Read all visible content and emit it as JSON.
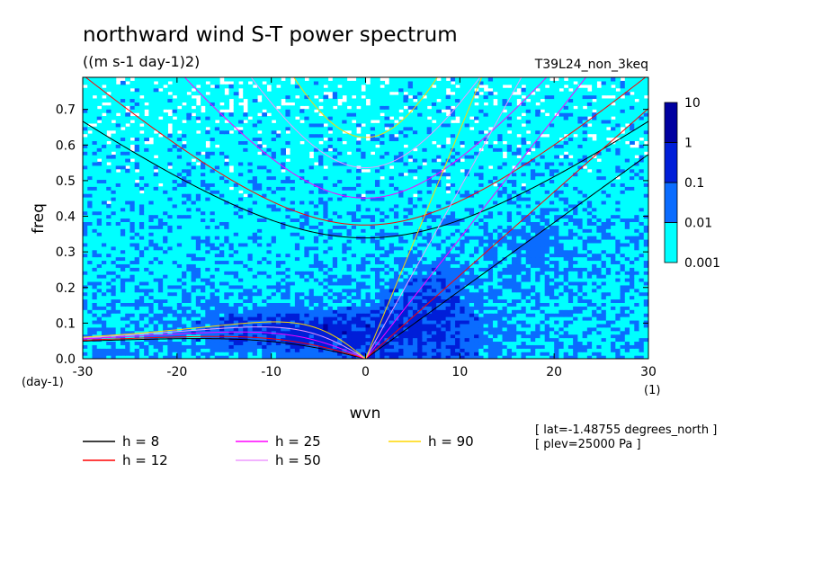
{
  "chart_data": {
    "type": "heatmap",
    "title": "northward wind S-T power spectrum",
    "subtitle": "((m s-1 day-1)2)",
    "experiment": "T39L24_non_3keq",
    "xlabel": "wvn",
    "ylabel": "freq",
    "x_unit": "(1)",
    "y_unit": "(day-1)",
    "xlim": [
      -30,
      30
    ],
    "ylim": [
      0,
      0.79
    ],
    "x_ticks": [
      -30,
      -20,
      -10,
      0,
      10,
      20,
      30
    ],
    "x_tick_labels": [
      "-30",
      "-20",
      "-10",
      "0",
      "10",
      "20",
      "30"
    ],
    "y_ticks": [
      0,
      0.1,
      0.2,
      0.3,
      0.4,
      0.5,
      0.6,
      0.7
    ],
    "y_tick_labels": [
      "0.0",
      "0.1",
      "0.2",
      "0.3",
      "0.4",
      "0.5",
      "0.6",
      "0.7"
    ],
    "color_scale": "log",
    "colorbar": {
      "levels": [
        "0.001",
        "0.01",
        "0.1",
        "1",
        "10"
      ],
      "colors": [
        "#00ffff",
        "#0a6cff",
        "#001ed8",
        "#0000a0"
      ]
    },
    "dispersion_curves": [
      {
        "label": "h =  8",
        "h": 8,
        "color": "#000000"
      },
      {
        "label": "h = 12",
        "h": 12,
        "color": "#ff0000"
      },
      {
        "label": "h = 25",
        "h": 25,
        "color": "#ff00ff"
      },
      {
        "label": "h = 50",
        "h": 50,
        "color": "#ee99ff"
      },
      {
        "label": "h = 90",
        "h": 90,
        "color": "#ffd700"
      }
    ],
    "annotations": [
      "[ lat=-1.48755 degrees_north ]",
      "[ plev=25000 Pa ]"
    ]
  }
}
